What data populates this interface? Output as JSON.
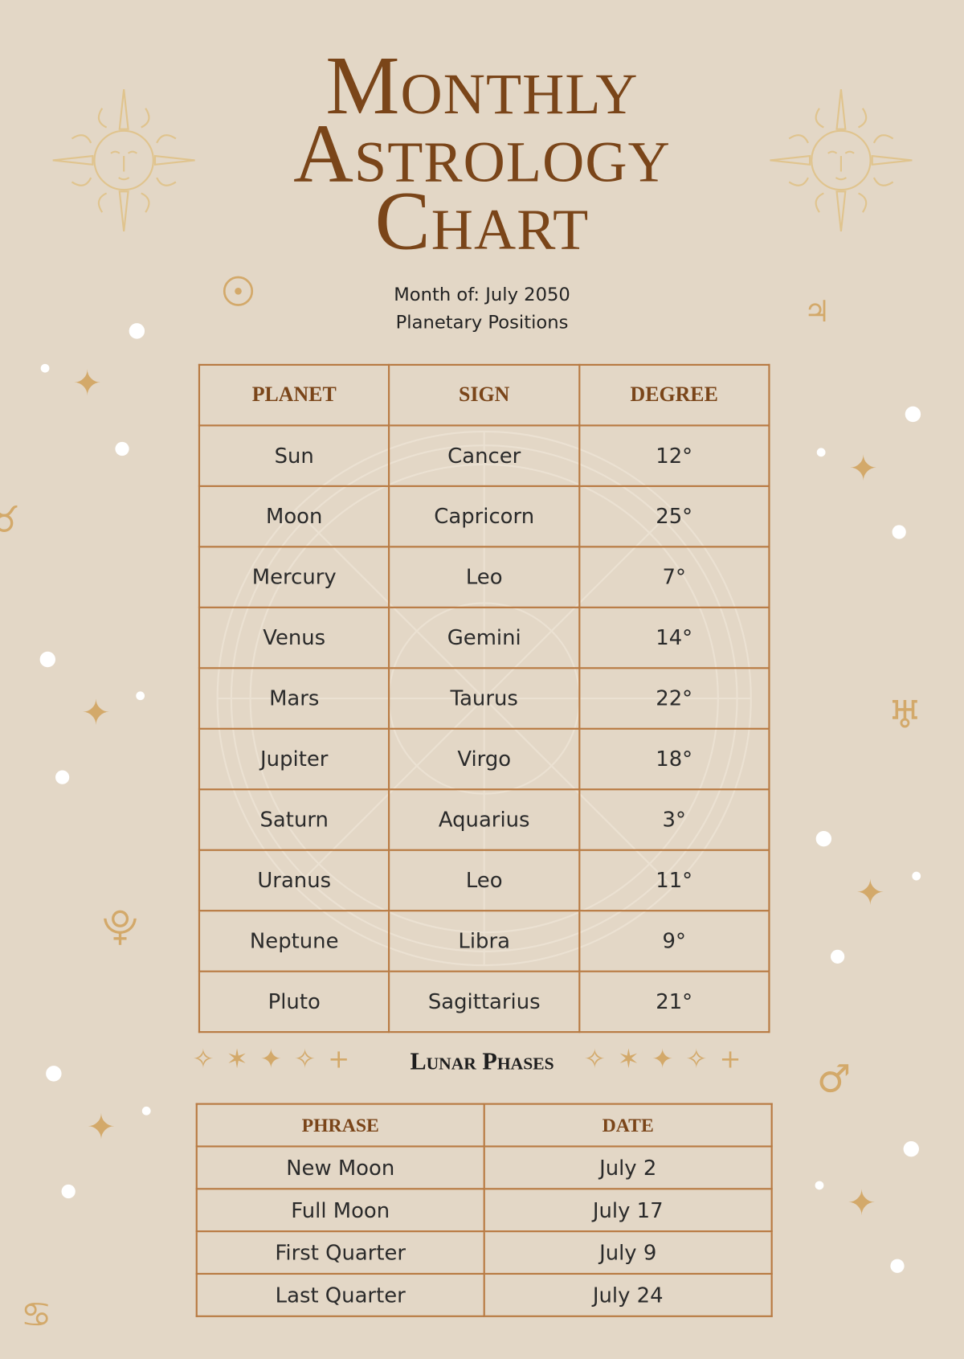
{
  "title": [
    "Monthly",
    "Astrology",
    "Chart"
  ],
  "month_line": "Month of: July 2050",
  "subtitle": "Planetary Positions",
  "planets": {
    "headers": [
      "PLANET",
      "SIGN",
      "DEGREE"
    ],
    "rows": [
      [
        "Sun",
        "Cancer",
        "12°"
      ],
      [
        "Moon",
        "Capricorn",
        "25°"
      ],
      [
        "Mercury",
        "Leo",
        "7°"
      ],
      [
        "Venus",
        "Gemini",
        "14°"
      ],
      [
        "Mars",
        "Taurus",
        "22°"
      ],
      [
        "Jupiter",
        "Virgo",
        "18°"
      ],
      [
        "Saturn",
        "Aquarius",
        "3°"
      ],
      [
        "Uranus",
        "Leo",
        "11°"
      ],
      [
        "Neptune",
        "Libra",
        "9°"
      ],
      [
        "Pluto",
        "Sagittarius",
        "21°"
      ]
    ]
  },
  "lunar": {
    "title": "Lunar Phases",
    "headers": [
      "PHRASE",
      "DATE"
    ],
    "rows": [
      [
        "New Moon",
        "July 2"
      ],
      [
        "Full Moon",
        "July 17"
      ],
      [
        "First Quarter",
        "July 9"
      ],
      [
        "Last Quarter",
        "July 24"
      ]
    ]
  },
  "colors": {
    "background": "#e3d7c6",
    "title": "#7a4519",
    "border": "#b87a42",
    "gold": "#d3a96a"
  },
  "icons": [
    "sun-face-icon",
    "sun-symbol-icon",
    "jupiter-symbol-icon",
    "uranus-symbol-icon",
    "pluto-symbol-icon",
    "mars-symbol-icon",
    "cancer-symbol-icon",
    "taurus-symbol-icon",
    "sparkle-icon"
  ]
}
